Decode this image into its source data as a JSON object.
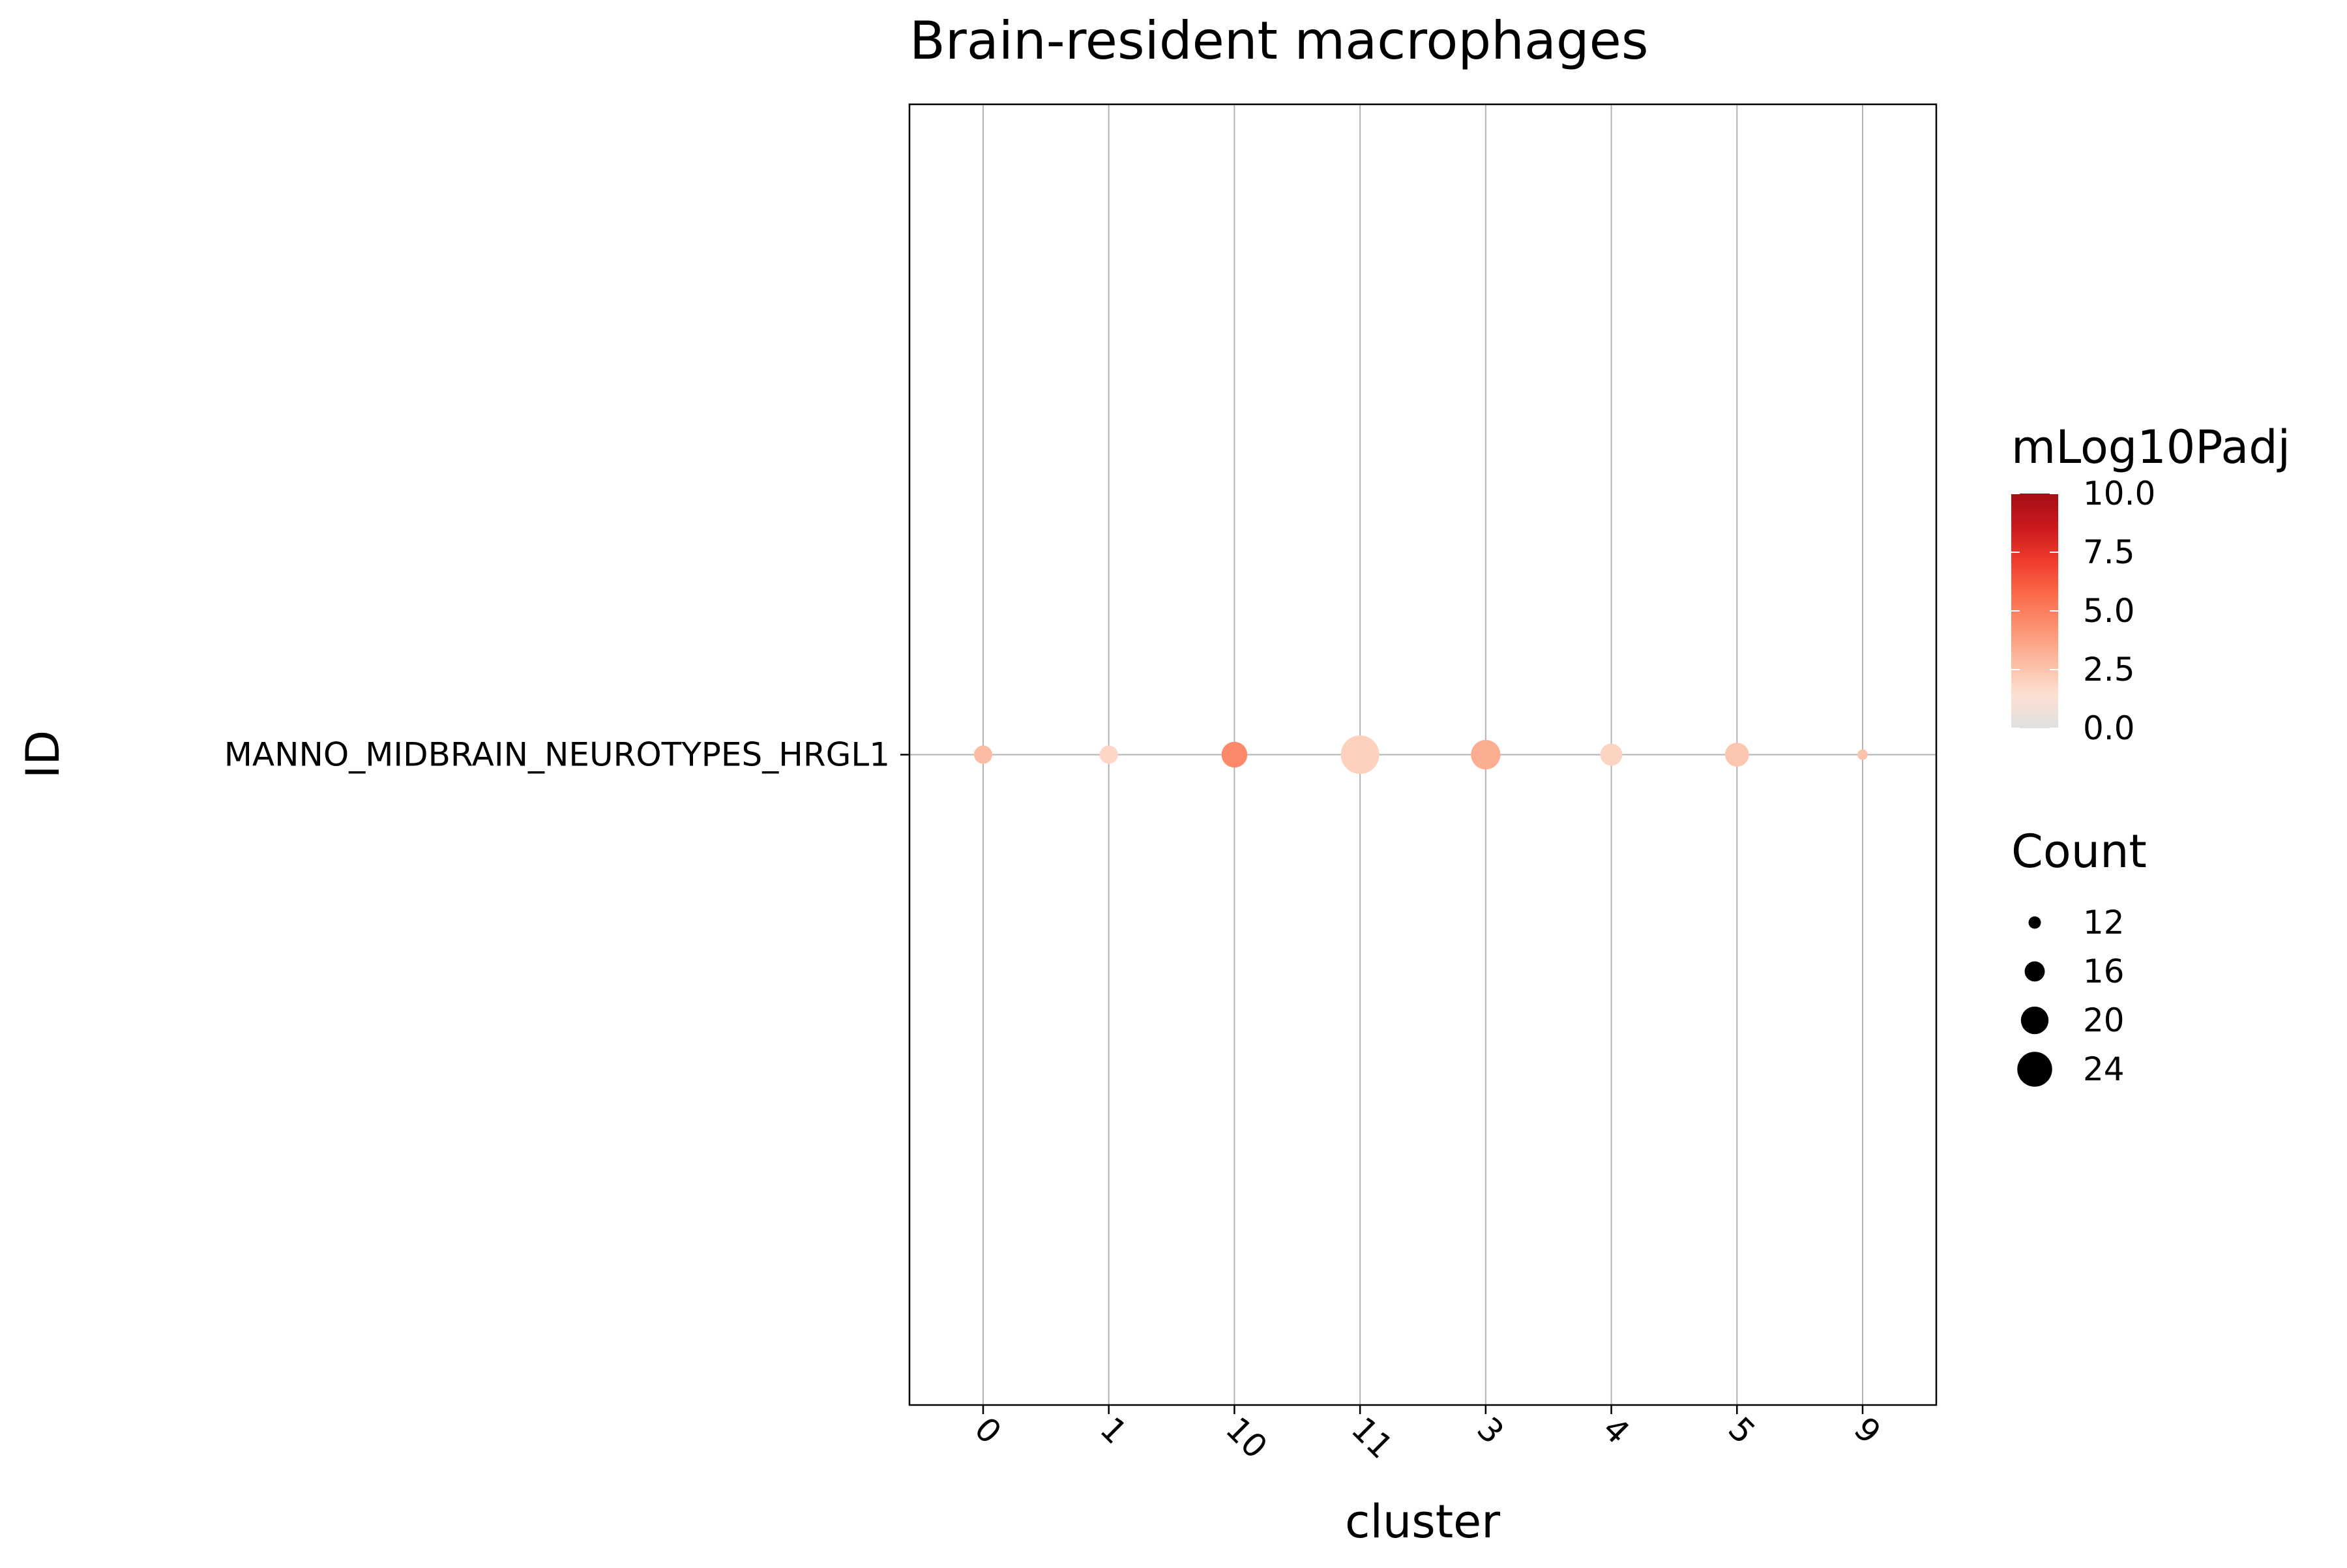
{
  "chart_data": {
    "type": "scatter",
    "title": "Brain-resident macrophages",
    "xlabel": "cluster",
    "ylabel": "ID",
    "categories": [
      "0",
      "1",
      "10",
      "11",
      "3",
      "4",
      "5",
      "9"
    ],
    "y_categories": [
      "MANNO_MIDBRAIN_NEUROTYPES_HRGL1"
    ],
    "grid": true,
    "x_tick_rotation_deg": 45,
    "points": [
      {
        "cluster": "0",
        "id": "MANNO_MIDBRAIN_NEUROTYPES_HRGL1",
        "count": 15,
        "mLog10Padj": 2.8
      },
      {
        "cluster": "1",
        "id": "MANNO_MIDBRAIN_NEUROTYPES_HRGL1",
        "count": 15,
        "mLog10Padj": 1.8
      },
      {
        "cluster": "10",
        "id": "MANNO_MIDBRAIN_NEUROTYPES_HRGL1",
        "count": 19,
        "mLog10Padj": 4.6
      },
      {
        "cluster": "11",
        "id": "MANNO_MIDBRAIN_NEUROTYPES_HRGL1",
        "count": 26,
        "mLog10Padj": 2.0
      },
      {
        "cluster": "3",
        "id": "MANNO_MIDBRAIN_NEUROTYPES_HRGL1",
        "count": 21,
        "mLog10Padj": 3.3
      },
      {
        "cluster": "4",
        "id": "MANNO_MIDBRAIN_NEUROTYPES_HRGL1",
        "count": 17,
        "mLog10Padj": 1.9
      },
      {
        "cluster": "5",
        "id": "MANNO_MIDBRAIN_NEUROTYPES_HRGL1",
        "count": 18,
        "mLog10Padj": 2.4
      },
      {
        "cluster": "9",
        "id": "MANNO_MIDBRAIN_NEUROTYPES_HRGL1",
        "count": 11,
        "mLog10Padj": 2.6
      }
    ],
    "color_legend": {
      "title": "mLog10Padj",
      "min": 0.0,
      "max": 10.0,
      "ticks": [
        "0.0",
        "2.5",
        "5.0",
        "7.5",
        "10.0"
      ],
      "tick_values": [
        0.0,
        2.5,
        5.0,
        7.5,
        10.0
      ],
      "colors": [
        "#e0e0e0",
        "#fde0d2",
        "#fcbba1",
        "#fc9272",
        "#fb6a4a",
        "#ef3b2c",
        "#cb181d",
        "#a50f15"
      ]
    },
    "size_legend": {
      "title": "Count",
      "labels": [
        "12",
        "16",
        "20",
        "24"
      ],
      "values": [
        12,
        16,
        20,
        24
      ],
      "color": "#000000"
    },
    "colors": {
      "panel_border": "#000000",
      "grid": "#b3b3b3",
      "background": "#ffffff"
    }
  }
}
